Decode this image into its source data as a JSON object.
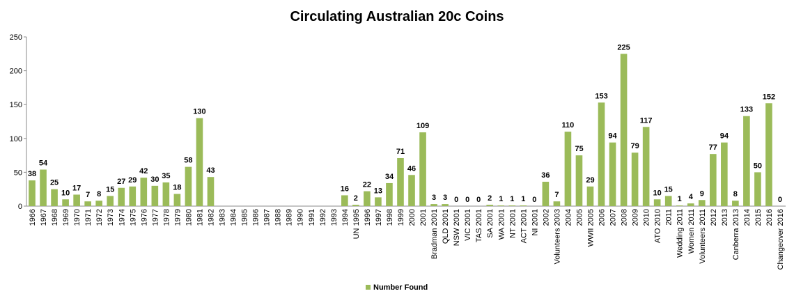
{
  "chart_data": {
    "type": "bar",
    "title": "Circulating Australian 20c Coins",
    "categories": [
      "1966",
      "1967",
      "1968",
      "1969",
      "1970",
      "1971",
      "1972",
      "1973",
      "1974",
      "1975",
      "1976",
      "1977",
      "1978",
      "1979",
      "1980",
      "1981",
      "1982",
      "1983",
      "1984",
      "1985",
      "1986",
      "1987",
      "1988",
      "1989",
      "1990",
      "1991",
      "1992",
      "1993",
      "1994",
      "UN 1995",
      "1996",
      "1997",
      "1998",
      "1999",
      "2000",
      "2001",
      "Bradman 2001",
      "QLD 2001",
      "NSW 2001",
      "VIC 2001",
      "TAS 2001",
      "SA 2001",
      "WA 2001",
      "NT 2001",
      "ACT 2001",
      "NI 2001",
      "2002",
      "Volunteers 2003",
      "2004",
      "2005",
      "WWII 2005",
      "2006",
      "2007",
      "2008",
      "2009",
      "2010",
      "ATO 2010",
      "2011",
      "Wedding 2011",
      "Women 2011",
      "Volunteers 2011",
      "2012",
      "2013",
      "Canberra 2013",
      "2014",
      "2015",
      "2016",
      "Changeover 2016"
    ],
    "series": [
      {
        "name": "Number Found",
        "color": "#9bbb59",
        "values": [
          38,
          54,
          25,
          10,
          17,
          7,
          8,
          15,
          27,
          29,
          42,
          30,
          35,
          18,
          58,
          130,
          43,
          null,
          null,
          null,
          null,
          null,
          null,
          null,
          null,
          null,
          null,
          null,
          16,
          2,
          22,
          13,
          34,
          71,
          46,
          109,
          3,
          3,
          0,
          0,
          0,
          2,
          1,
          1,
          1,
          0,
          36,
          7,
          110,
          75,
          29,
          153,
          94,
          225,
          79,
          117,
          10,
          15,
          1,
          4,
          9,
          77,
          94,
          8,
          133,
          50,
          152,
          0
        ]
      }
    ],
    "ylim": [
      0,
      250
    ],
    "yticks": [
      0,
      50,
      100,
      150,
      200,
      250
    ],
    "grid": false,
    "legend": "bottom"
  }
}
